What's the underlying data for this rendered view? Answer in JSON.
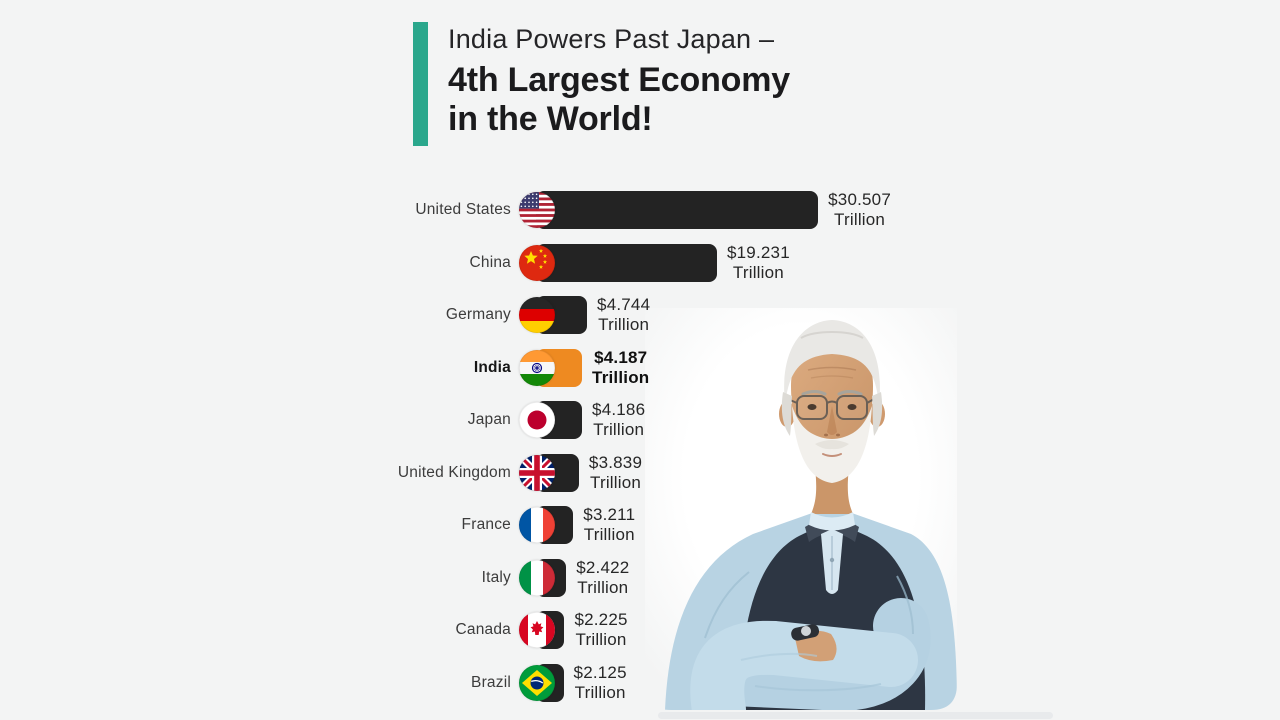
{
  "page": {
    "background_color": "#f3f4f4"
  },
  "header": {
    "accent_color": "#2aa78c",
    "title_line1": "India Powers Past Japan –",
    "title_line2": "4th Largest Economy",
    "title_line3": "in the World!"
  },
  "chart_data": {
    "type": "bar",
    "orientation": "horizontal",
    "title": "India Powers Past Japan – 4th Largest Economy in the World!",
    "unit": "USD Trillion",
    "categories": [
      "United States",
      "China",
      "Germany",
      "India",
      "Japan",
      "United Kingdom",
      "France",
      "Italy",
      "Canada",
      "Brazil"
    ],
    "values": [
      30.507,
      19.231,
      4.744,
      4.187,
      4.186,
      3.839,
      3.211,
      2.422,
      2.225,
      2.125
    ],
    "value_labels": [
      "$30.507",
      "$19.231",
      "$4.744",
      "$4.187",
      "$4.186",
      "$3.839",
      "$3.211",
      "$2.422",
      "$2.225",
      "$2.125"
    ],
    "value_suffix": "Trillion",
    "flags": [
      "flag-united-states",
      "flag-china",
      "flag-germany",
      "flag-india",
      "flag-japan",
      "flag-united-kingdom",
      "flag-france",
      "flag-italy",
      "flag-canada",
      "flag-brazil"
    ],
    "bar_color": "#232323",
    "highlight_index": 3,
    "highlight_color": "#EE8A21",
    "xlim": [
      0,
      31
    ],
    "grid": false,
    "legend": false
  },
  "photo": {
    "description": "Narendra Modi smiling with arms crossed, wearing a dark vest over a light blue kurta"
  }
}
